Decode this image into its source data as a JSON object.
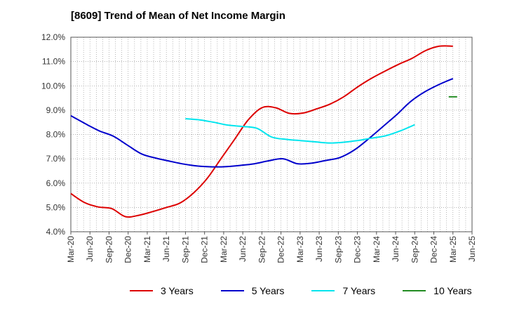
{
  "chart_data": {
    "type": "line",
    "title": "[8609]  Trend of Mean of Net Income Margin",
    "x_tick_labels": [
      "Mar-20",
      "Jun-20",
      "Sep-20",
      "Dec-20",
      "Mar-21",
      "Jun-21",
      "Sep-21",
      "Dec-21",
      "Mar-22",
      "Jun-22",
      "Sep-22",
      "Dec-22",
      "Mar-23",
      "Jun-23",
      "Sep-23",
      "Dec-23",
      "Mar-24",
      "Jun-24",
      "Sep-24",
      "Dec-24",
      "Mar-25",
      "Jun-25"
    ],
    "y_tick_labels": [
      "4.0%",
      "5.0%",
      "6.0%",
      "7.0%",
      "8.0%",
      "9.0%",
      "10.0%",
      "11.0%",
      "12.0%"
    ],
    "ylim": [
      4.0,
      12.0
    ],
    "y_unit": "%",
    "grid": true,
    "legend_position": "bottom",
    "series": [
      {
        "name": "3 Years",
        "color": "#dd0000",
        "values": [
          5.57,
          5.2,
          5.02,
          4.95,
          4.62,
          4.68,
          4.83,
          5.0,
          5.18,
          5.6,
          6.2,
          7.0,
          7.8,
          8.6,
          9.1,
          9.1,
          8.87,
          8.88,
          9.05,
          9.25,
          9.55,
          9.95,
          10.3,
          10.6,
          10.88,
          11.13,
          11.45,
          11.63,
          11.63
        ]
      },
      {
        "name": "5 Years",
        "color": "#0000cc",
        "values": [
          8.77,
          8.45,
          8.15,
          7.93,
          7.56,
          7.2,
          7.03,
          6.9,
          6.78,
          6.7,
          6.67,
          6.68,
          6.73,
          6.8,
          6.92,
          7.0,
          6.8,
          6.82,
          6.93,
          7.05,
          7.35,
          7.8,
          8.3,
          8.8,
          9.35,
          9.75,
          10.05,
          10.3
        ]
      },
      {
        "name": "7 Years",
        "color": "#00e5ee",
        "values": [
          8.65,
          8.6,
          8.5,
          8.38,
          8.33,
          8.25,
          7.9,
          7.8,
          7.75,
          7.7,
          7.65,
          7.68,
          7.75,
          7.85,
          7.95,
          8.15,
          8.4
        ]
      },
      {
        "name": "10 Years",
        "color": "#228b22",
        "values": [
          9.55
        ]
      }
    ]
  }
}
